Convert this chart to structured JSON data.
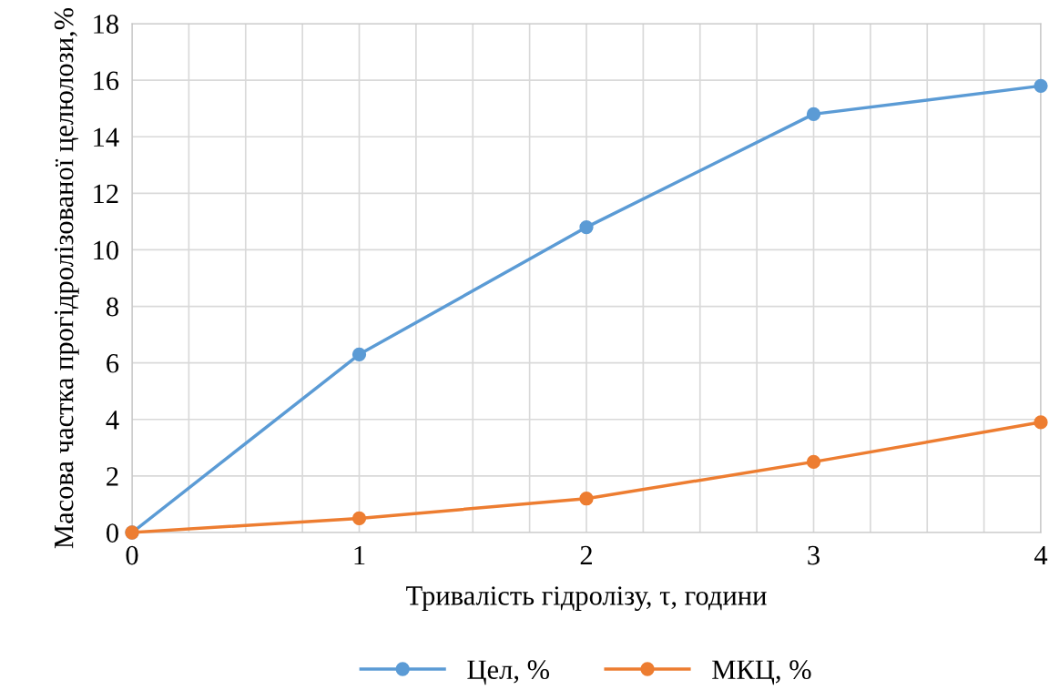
{
  "chart_data": {
    "type": "line",
    "xlabel": "Тривалість гідролізу, τ, години",
    "ylabel": "Масова частка прогідролізованої целюлози,%",
    "x": [
      0,
      1,
      2,
      3,
      4
    ],
    "series": [
      {
        "name": "Цел, %",
        "color": "#5b9bd5",
        "values": [
          0,
          6.3,
          10.8,
          14.8,
          15.8
        ]
      },
      {
        "name": "МКЦ, %",
        "color": "#ed7d31",
        "values": [
          0,
          0.5,
          1.2,
          2.5,
          3.9
        ]
      }
    ],
    "xlim": [
      0,
      4
    ],
    "xticks": [
      0,
      {
        "value": 0.25,
        "label": null
      },
      {
        "value": 0.5,
        "label": null
      },
      {
        "value": 0.75,
        "label": null
      },
      1,
      {
        "value": 1.25,
        "label": null
      },
      {
        "value": 1.5,
        "label": null
      },
      {
        "value": 1.75,
        "label": null
      },
      2,
      {
        "value": 2.25,
        "label": null
      },
      {
        "value": 2.5,
        "label": null
      },
      {
        "value": 2.75,
        "label": null
      },
      3,
      {
        "value": 3.25,
        "label": null
      },
      {
        "value": 3.5,
        "label": null
      },
      {
        "value": 3.75,
        "label": null
      },
      4
    ],
    "ylim": [
      0,
      18
    ],
    "yticks": [
      0,
      2,
      4,
      6,
      8,
      10,
      12,
      14,
      16,
      18
    ],
    "grid": true,
    "legend": "bottom",
    "marker": "circle",
    "line_style": "solid"
  }
}
